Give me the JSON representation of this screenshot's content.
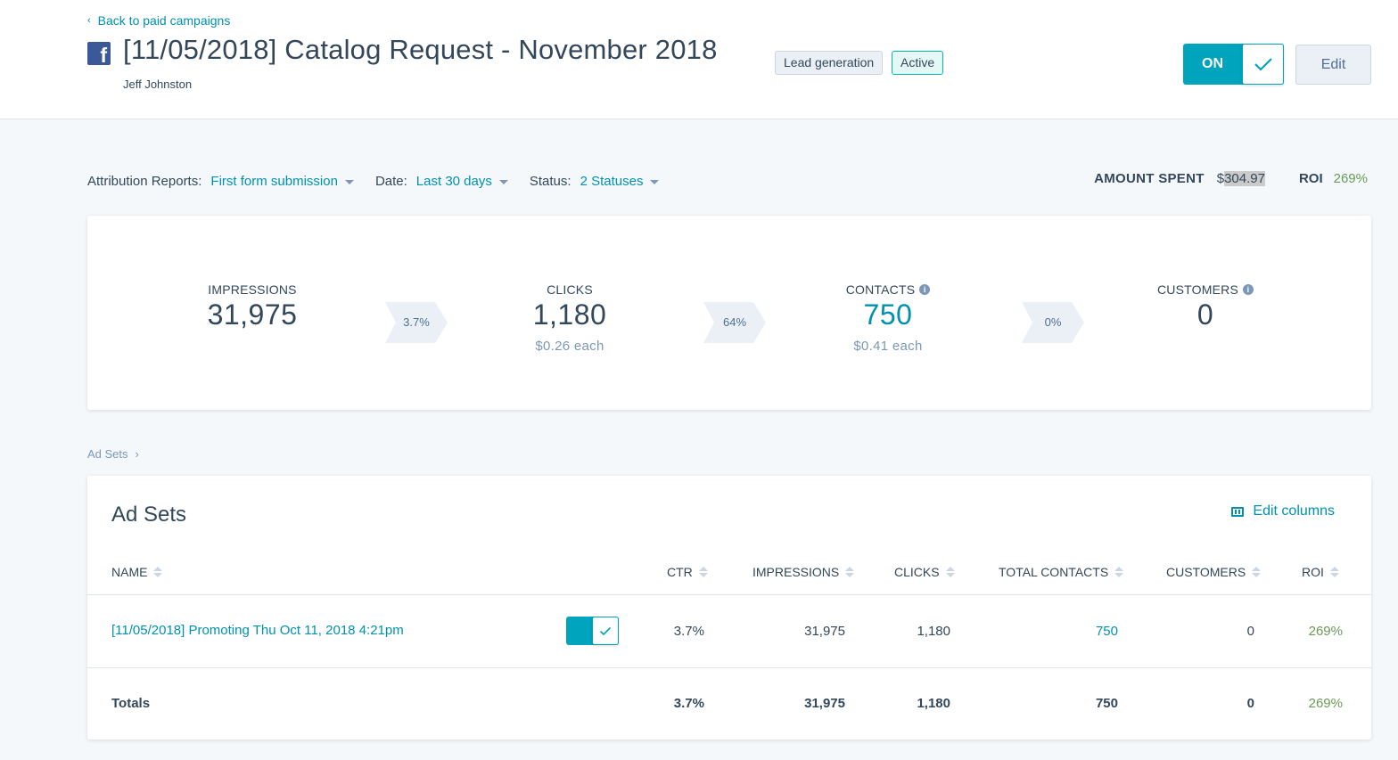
{
  "header": {
    "back_label": "Back to paid campaigns",
    "title": "[11/05/2018] Catalog Request - November 2018",
    "owner": "Jeff Johnston",
    "tags": [
      "Lead generation",
      "Active"
    ],
    "toggle_label": "ON",
    "edit_label": "Edit"
  },
  "filters": {
    "attribution_label": "Attribution Reports:",
    "attribution_value": "First form submission",
    "date_label": "Date:",
    "date_value": "Last 30 days",
    "status_label": "Status:",
    "status_value": "2 Statuses",
    "amount_spent_label": "AMOUNT SPENT",
    "amount_spent_currency": "$",
    "amount_spent_value": "304.97",
    "roi_label": "ROI",
    "roi_value": "269%"
  },
  "funnel": {
    "impressions": {
      "label": "IMPRESSIONS",
      "value": "31,975"
    },
    "rate1": "3.7%",
    "clicks": {
      "label": "CLICKS",
      "value": "1,180",
      "sub": "$0.26 each"
    },
    "rate2": "64%",
    "contacts": {
      "label": "CONTACTS",
      "value": "750",
      "sub": "$0.41 each"
    },
    "rate3": "0%",
    "customers": {
      "label": "CUSTOMERS",
      "value": "0"
    }
  },
  "breadcrumb": "Ad Sets",
  "adsets": {
    "title": "Ad Sets",
    "edit_columns": "Edit columns",
    "columns": [
      "NAME",
      "CTR",
      "IMPRESSIONS",
      "CLICKS",
      "TOTAL CONTACTS",
      "CUSTOMERS",
      "ROI"
    ],
    "row": {
      "name": "[11/05/2018] Promoting Thu Oct 11, 2018 4:21pm",
      "ctr": "3.7%",
      "impressions": "31,975",
      "clicks": "1,180",
      "total_contacts": "750",
      "customers": "0",
      "roi": "269%"
    },
    "totals": {
      "label": "Totals",
      "ctr": "3.7%",
      "impressions": "31,975",
      "clicks": "1,180",
      "total_contacts": "750",
      "customers": "0",
      "roi": "269%"
    }
  },
  "colors": {
    "accent": "#0091ae",
    "toggle": "#00a4bd",
    "positive": "#6a9a57",
    "text": "#33475b"
  }
}
